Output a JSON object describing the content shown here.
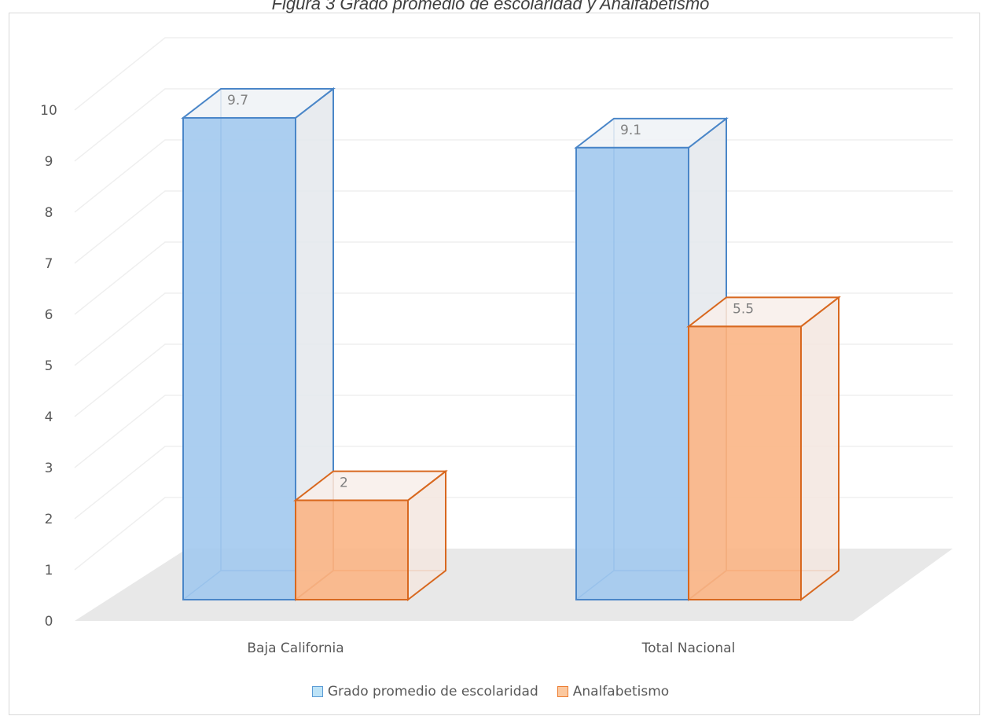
{
  "chart_data": {
    "type": "bar",
    "title": "Figura 3 Grado promedio de escolaridad y Analfabetismo",
    "categories": [
      "Baja California",
      "Total Nacional"
    ],
    "series": [
      {
        "name": "Grado promedio de escolaridad",
        "values": [
          9.7,
          9.1
        ],
        "color": "#5b9bd5"
      },
      {
        "name": "Analfabetismo",
        "values": [
          2,
          5.5
        ],
        "color": "#ed7d31"
      }
    ],
    "yticks": [
      "0",
      "1",
      "2",
      "3",
      "4",
      "5",
      "6",
      "7",
      "8",
      "9",
      "10"
    ],
    "ylim": [
      0,
      10
    ],
    "xlabel": "",
    "ylabel": "",
    "grid": true,
    "legend_position": "bottom",
    "data_labels": [
      "9.7",
      "2",
      "9.1",
      "5.5"
    ]
  }
}
